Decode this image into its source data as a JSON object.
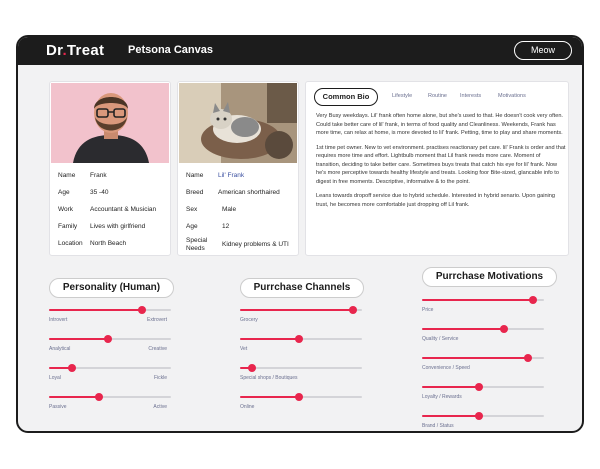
{
  "app": {
    "logo_main": "Dr",
    "logo_dot": ".",
    "logo_end": "Treat",
    "title": "Petsona Canvas",
    "meow_label": "Meow"
  },
  "human_card": {
    "rows": [
      {
        "key": "Name",
        "value": "Frank"
      },
      {
        "key": "Age",
        "value": "35 -40"
      },
      {
        "key": "Work",
        "value": "Accountant & Musician"
      },
      {
        "key": "Family",
        "value": "Lives with girlfriend"
      },
      {
        "key": "Location",
        "value": "North Beach"
      }
    ]
  },
  "pet_card": {
    "rows": [
      {
        "key": "Name",
        "value": "Lil' Frank"
      },
      {
        "key": "Breed",
        "value": "American shorthaired"
      },
      {
        "key": "Sex",
        "value": "Male"
      },
      {
        "key": "Age",
        "value": "12"
      },
      {
        "key": "Special Needs",
        "value": "Kidney problems & UTI"
      }
    ]
  },
  "bio": {
    "tabs": [
      "Common Bio",
      "Lifestyle",
      "Routine",
      "Interests",
      "Motivations"
    ],
    "paragraphs": [
      "Very Busy weekdays. Lil' frank often home alone, but she's used to that. He doesn't cook very often. Could take better care of lil' frank, in terms of food quality and Cleanliness. Weekends, Frank has more time, can relax at home, is more devoted to lil' frank. Petting, time to play and share moments.",
      "1st time pet owner. New to vet environment. practises reactionary pet care. lil' Frank is order and that requires more time and effort. Lightbulb moment that Lil frank needs more care. Moment of transition, deciding to take better care. Sometimes buys treats that catch his eye for lil' frank. Now he's more perceptive towards healthy lifestyle and treats. Looking foor Bite-sized, glancable info to digest in free moments. Descriptive, informative & to the point.",
      "Leans towards dropoff service due to hybrid schedule. Interested in hybrid senario. Upon gaining trust, he becomes more comfortable just dropping off Lil frank."
    ]
  },
  "personality": {
    "title": "Personality (Human)",
    "sliders": [
      {
        "left": "Introvert",
        "right": "Extrovert",
        "value": 0.76
      },
      {
        "left": "Analytical",
        "right": "Creative",
        "value": 0.48
      },
      {
        "left": "Loyal",
        "right": "Fickle",
        "value": 0.19
      },
      {
        "left": "Passive",
        "right": "Active",
        "value": 0.41
      }
    ]
  },
  "channels": {
    "title": "Purrchase Channels",
    "sliders": [
      {
        "label": "Grocery",
        "value": 0.93
      },
      {
        "label": "Vet",
        "value": 0.48
      },
      {
        "label": "Special shops / Boutiques",
        "value": 0.1
      },
      {
        "label": "Online",
        "value": 0.48
      }
    ]
  },
  "motivations": {
    "title": "Purrchase Motivations",
    "sliders": [
      {
        "label": "Price",
        "value": 0.91
      },
      {
        "label": "Quality / Service",
        "value": 0.67
      },
      {
        "label": "Convenience / Speed",
        "value": 0.87
      },
      {
        "label": "Loyalty / Rewards",
        "value": 0.47
      },
      {
        "label": "Brand / Status",
        "value": 0.47
      }
    ]
  },
  "colors": {
    "accent": "#e8264d",
    "dark": "#1c1c1c",
    "label": "#6a6f8f"
  }
}
